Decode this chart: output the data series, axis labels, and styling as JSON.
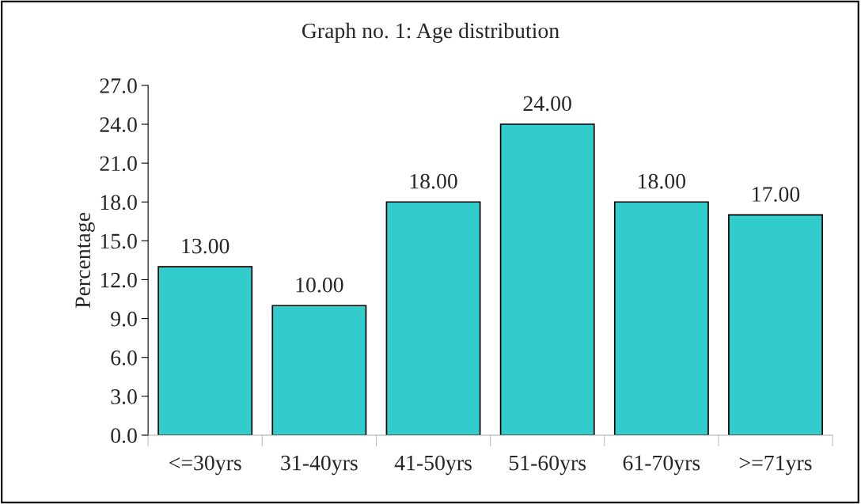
{
  "chart_data": {
    "type": "bar",
    "title": "Graph no. 1: Age distribution",
    "ylabel": "Percentage",
    "categories": [
      "<=30yrs",
      "31-40yrs",
      "41-50yrs",
      "51-60yrs",
      "61-70yrs",
      ">=71yrs"
    ],
    "values": [
      13,
      10,
      18,
      24,
      18,
      17
    ],
    "value_labels": [
      "13.00",
      "10.00",
      "18.00",
      "24.00",
      "18.00",
      "17.00"
    ],
    "color": "#33cccc",
    "ylim": [
      0,
      27
    ],
    "yticks": [
      {
        "value": 0,
        "label": "0.0"
      },
      {
        "value": 3,
        "label": "3.0"
      },
      {
        "value": 6,
        "label": "6.0"
      },
      {
        "value": 9,
        "label": "9.0"
      },
      {
        "value": 12,
        "label": "12.0"
      },
      {
        "value": 15,
        "label": "15.0"
      },
      {
        "value": 18,
        "label": "18.0"
      },
      {
        "value": 21,
        "label": "21.0"
      },
      {
        "value": 24,
        "label": "24.0"
      },
      {
        "value": 27,
        "label": "27.0"
      }
    ],
    "grid": false,
    "legend": false
  }
}
